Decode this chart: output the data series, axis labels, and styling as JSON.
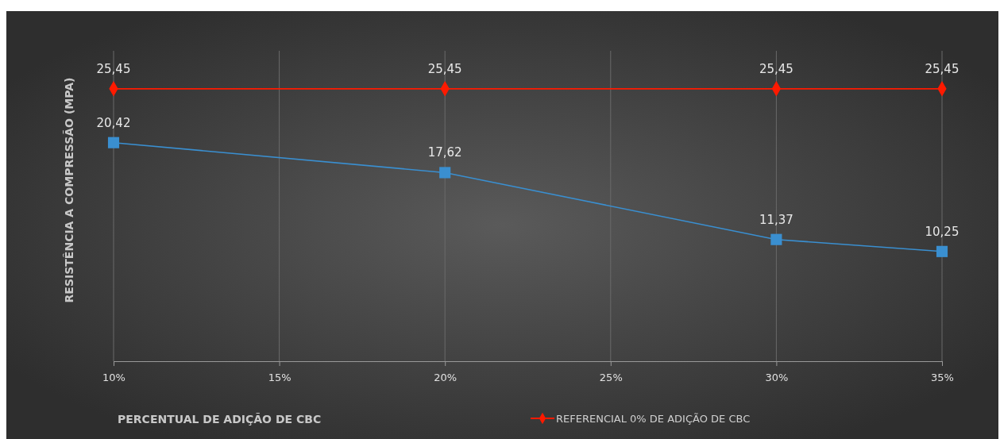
{
  "chart_data": {
    "type": "line",
    "xlabel": "PERCENTUAL DE ADIÇÃO DE CBC",
    "ylabel": "RESISTÊNCIA A COMPRESSÃO (MPA)",
    "xlim": [
      10,
      35
    ],
    "xticks": [
      {
        "value": 10,
        "label": "10%"
      },
      {
        "value": 15,
        "label": "15%"
      },
      {
        "value": 20,
        "label": "20%"
      },
      {
        "value": 25,
        "label": "25%"
      },
      {
        "value": 30,
        "label": "30%"
      },
      {
        "value": 35,
        "label": "35%"
      }
    ],
    "ylim": [
      0,
      29
    ],
    "tick_labels": "x",
    "grid": "x",
    "legend": "bottom",
    "series": [
      {
        "name": "REFERENCIAL  0% DE ADIÇÃO DE CBC",
        "color": "#ff1a00",
        "marker": "diamond",
        "x": [
          10,
          20,
          30,
          35
        ],
        "values": [
          25.45,
          25.45,
          25.45,
          25.45
        ],
        "value_labels": [
          "25,45",
          "25,45",
          "25,45",
          "25,45"
        ]
      },
      {
        "color": "#3a8fd0",
        "marker": "square",
        "x": [
          10,
          20,
          30,
          35
        ],
        "values": [
          20.42,
          17.62,
          11.37,
          10.25
        ],
        "value_labels": [
          "20,42",
          "17,62",
          "11,37",
          "10,25"
        ]
      }
    ]
  }
}
